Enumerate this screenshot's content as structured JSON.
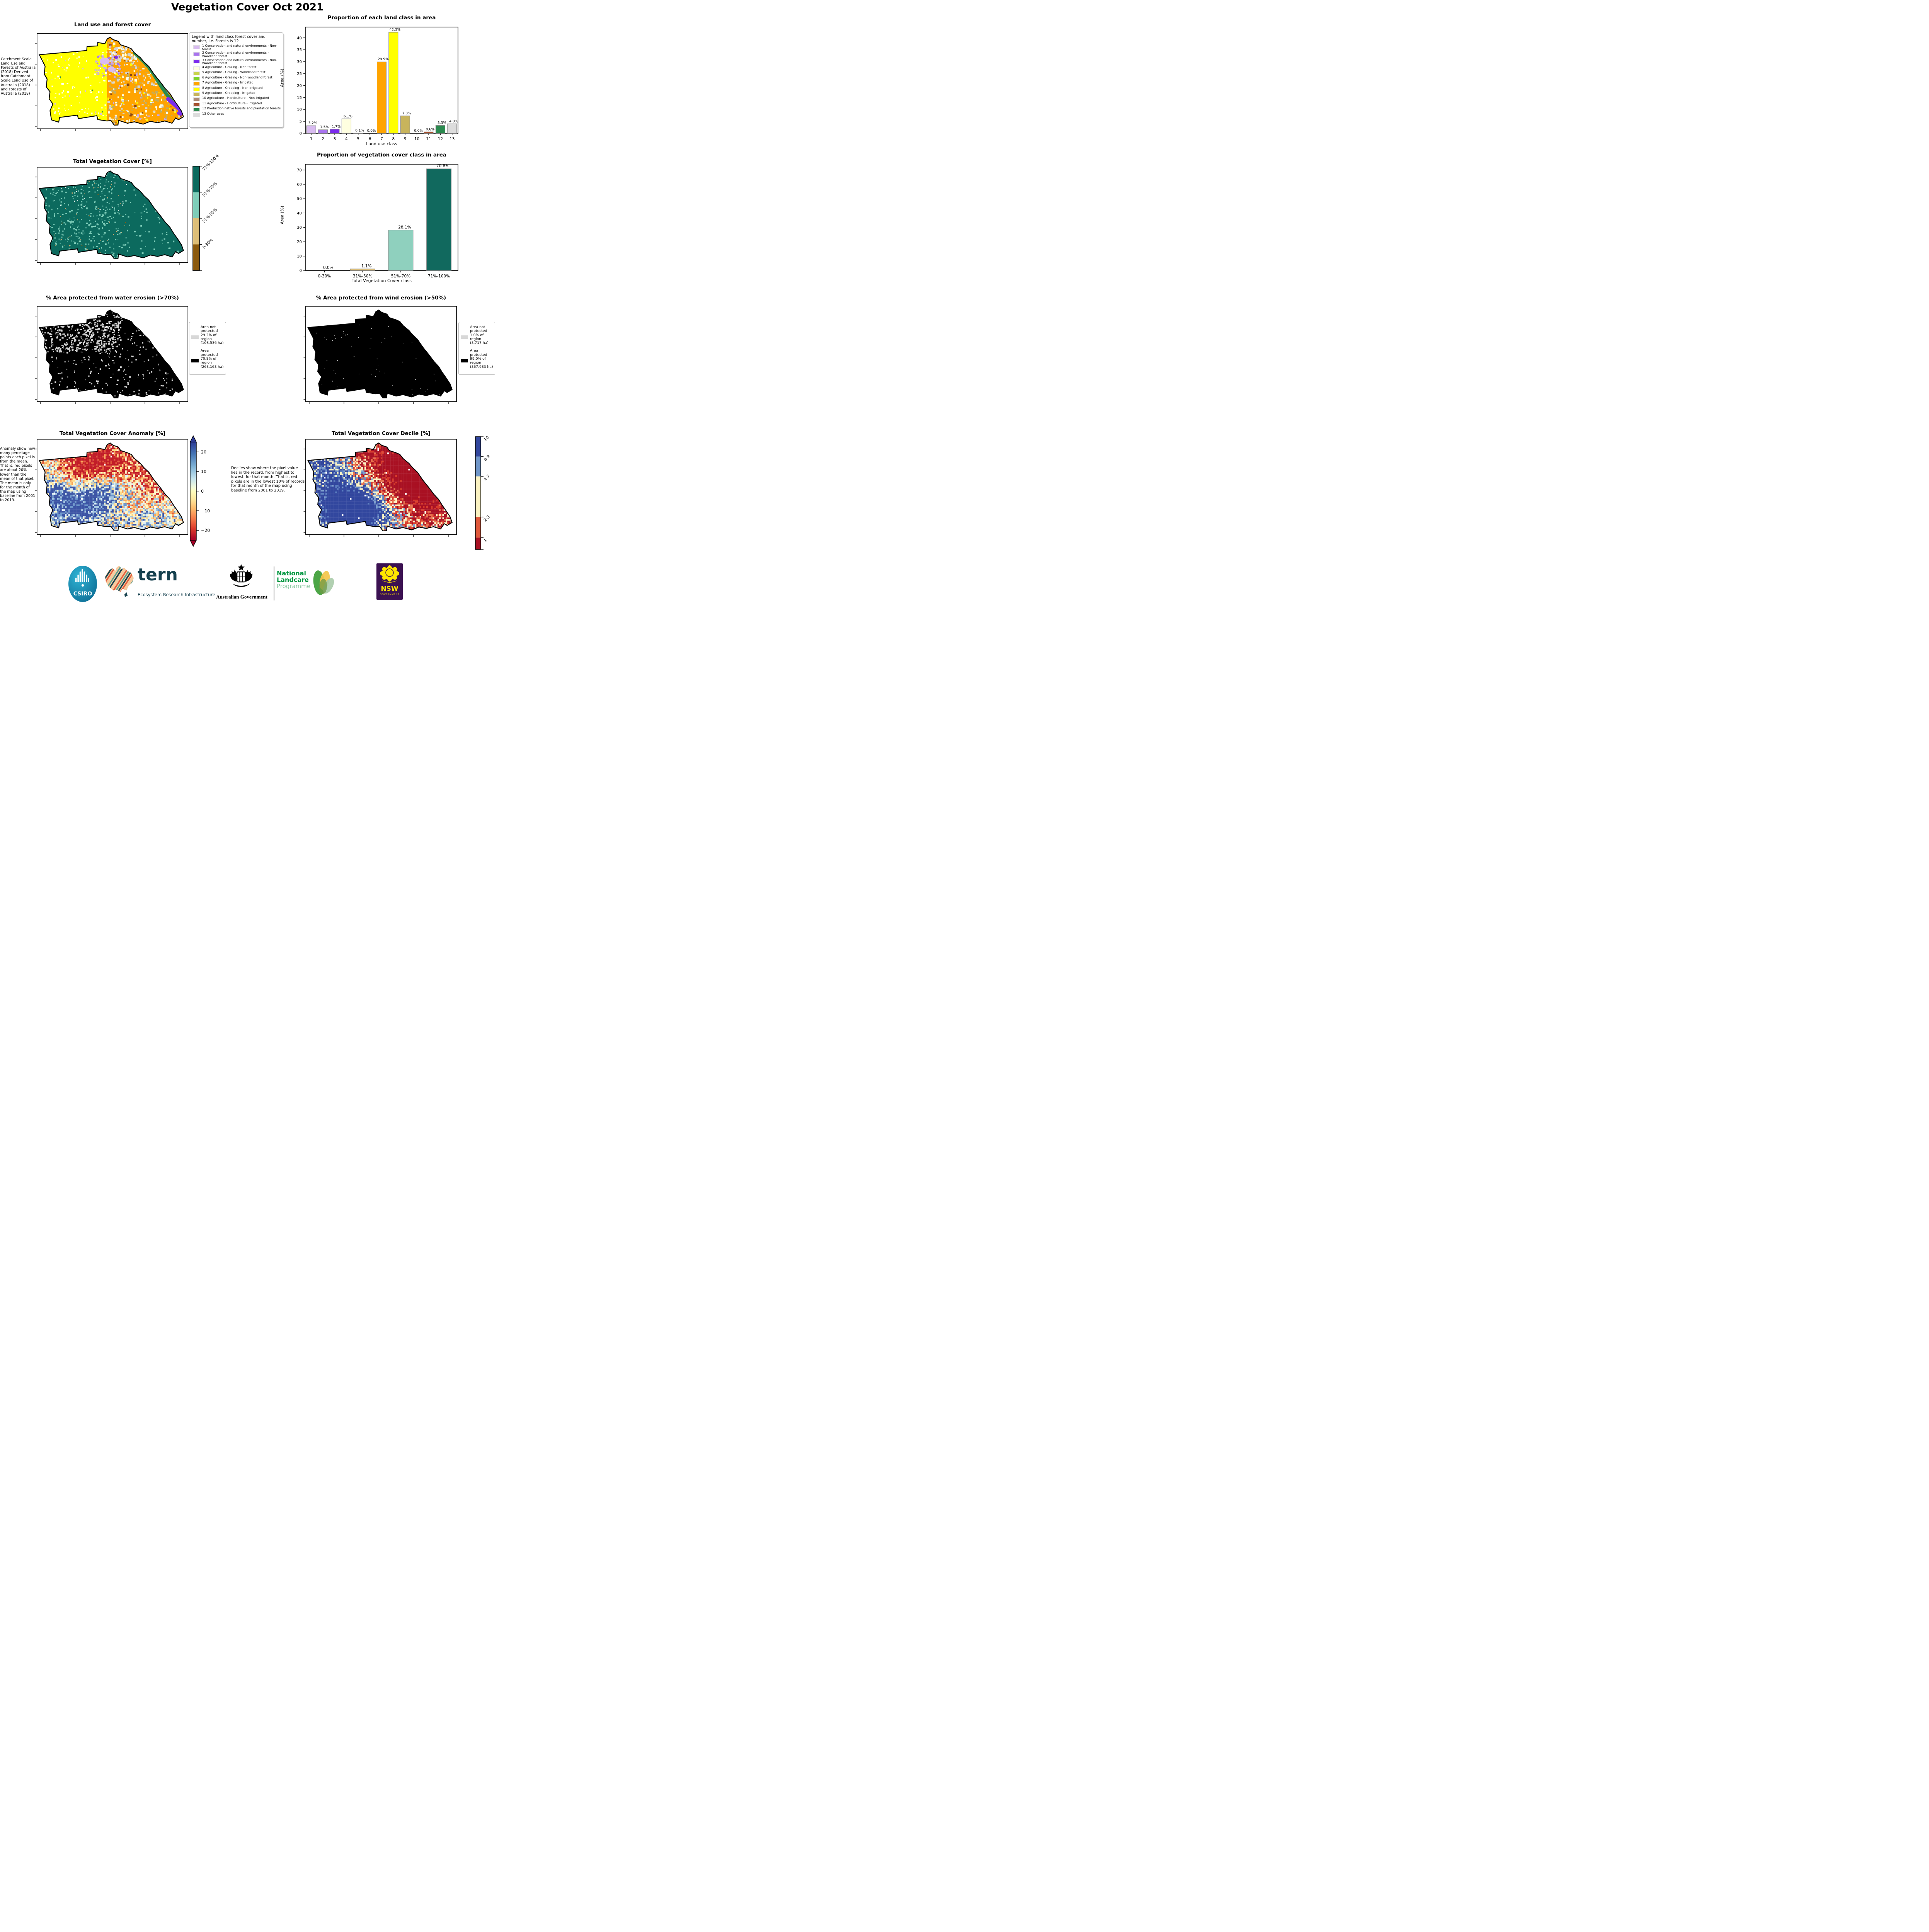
{
  "page_title": "Vegetation Cover Oct 2021",
  "maps": {
    "land_use": {
      "title": "Land use and forest cover",
      "note": "Catchment Scale Land Use and Forests of Australia (2018) Derived from Catchment Scale Land Use of Australia (2018) and Forests of Australia (2018)"
    },
    "veg_cover": {
      "title": "Total Vegetation Cover [%]",
      "colorbar_labels": [
        "71%-100%",
        "51%-70%",
        "31%-50%",
        "0-30%"
      ],
      "colorbar_colors": [
        "#0C6A5E",
        "#7ECDB9",
        "#DDBE78",
        "#8B5A0E"
      ]
    },
    "water": {
      "title": "% Area protected from water erosion (>70%)",
      "legend": [
        {
          "label": "Area not protected 29.2% of region (108,536 ha)",
          "color": "#D8D8D8"
        },
        {
          "label": "Area protected 70.8% of region (263,163 ha)",
          "color": "#000000"
        }
      ]
    },
    "wind": {
      "title": "% Area protected from wind erosion (>50%)",
      "legend": [
        {
          "label": "Area not protected 1.0% of region (3,717 ha)",
          "color": "#D8D8D8"
        },
        {
          "label": "Area protected 99.0% of region (367,983 ha)",
          "color": "#000000"
        }
      ]
    },
    "anomaly": {
      "title": "Total Vegetation Cover Anomaly [%]",
      "note": "Anomaly show how many percetage points each pixel is from the mean. That is, red pixels are about 20% lower than the mean of that pixel. The mean is only for the month of the map using baseline from 2001 to 2019.",
      "colorbar_ticks": [
        "20",
        "10",
        "0",
        "−10",
        "−20"
      ]
    },
    "decile": {
      "title": "Total Vegetation Cover Decile [%]",
      "note": "Deciles show where the pixel value lies in the record, from highest to lowest, for that month. That is, red pixels are in the lowest 10% of records for that month of the map using baseline from 2001 to 2019.",
      "colorbar_labels": [
        "10",
        "8-9",
        "4-7",
        "2-3",
        "1"
      ],
      "colorbar_colors": [
        "#32479E",
        "#7096C9",
        "#FBF3C2",
        "#E1593B",
        "#A91123"
      ]
    }
  },
  "land_legend": {
    "title": "Legend with land class forest cover and number, i.e. Forests is 12",
    "items": [
      {
        "label": "1 Conservation and natural environments - Non-forest",
        "color": "#D8BBF0"
      },
      {
        "label": "2 Conservation and natural environments - Woodland forest",
        "color": "#A873EE"
      },
      {
        "label": "3 Conservation and natural environments - Non-Woodland forest",
        "color": "#7C2BEE"
      },
      {
        "label": "4 Agriculture - Grazing - Non-forest",
        "color": "#FFFFE0"
      },
      {
        "label": "5 Agriculture - Grazing - Woodland forest",
        "color": "#C9D44B"
      },
      {
        "label": "6 Agriculture - Grazing - Non-woodland forest",
        "color": "#7ED32C"
      },
      {
        "label": "7 Agriculture - Grazing - Irrigated",
        "color": "#FFA400"
      },
      {
        "label": "8 Agriculture - Cropping - Non-irrigated",
        "color": "#FFFF00"
      },
      {
        "label": "9 Agriculture - Cropping - Irrigated",
        "color": "#C8B45C"
      },
      {
        "label": "10 Agriculture - Horticulture - Non-irrigated",
        "color": "#AD8A78"
      },
      {
        "label": "11 Agriculture - Horticulture - Irrigated",
        "color": "#A55231"
      },
      {
        "label": "12 Production native forests and plantation forests",
        "color": "#2B8A4F"
      },
      {
        "label": "13 Other uses",
        "color": "#DCDCDC"
      }
    ]
  },
  "chart_data": [
    {
      "type": "bar",
      "title": "Proportion of each land class in area",
      "xlabel": "Land use class",
      "ylabel": "Area (%)",
      "categories": [
        "1",
        "2",
        "3",
        "4",
        "5",
        "6",
        "7",
        "8",
        "9",
        "10",
        "11",
        "12",
        "13"
      ],
      "values": [
        3.2,
        1.5,
        1.7,
        6.1,
        0.1,
        0.0,
        29.9,
        42.3,
        7.3,
        0.0,
        0.6,
        3.3,
        4.0
      ],
      "value_labels": [
        "3.2%",
        "1.5%",
        "1.7%",
        "6.1%",
        "0.1%",
        "0.0%",
        "29.9%",
        "42.3%",
        "7.3%",
        "0.0%",
        "0.6%",
        "3.3%",
        "4.0%"
      ],
      "ylim": [
        0,
        44.5
      ],
      "yticks": [
        0,
        5,
        10,
        15,
        20,
        25,
        30,
        35,
        40
      ],
      "bar_colors": [
        "#D8BBF0",
        "#A873EE",
        "#7C2BEE",
        "#FFFFE0",
        "#C9D44B",
        "#7ED32C",
        "#FFA400",
        "#FFFF00",
        "#C8B45C",
        "#AD8A78",
        "#A55231",
        "#2B8A4F",
        "#DCDCDC"
      ],
      "grid": false,
      "legend_position": "none"
    },
    {
      "type": "bar",
      "title": "Proportion of vegetation cover class in area",
      "xlabel": "Total Vegetation Cover class",
      "ylabel": "Area (%)",
      "categories": [
        "0-30%",
        "31%-50%",
        "51%-70%",
        "71%-100%"
      ],
      "values": [
        0.0,
        1.1,
        28.1,
        70.8
      ],
      "value_labels": [
        "0.0%",
        "1.1%",
        "28.1%",
        "70.8%"
      ],
      "ylim": [
        0,
        74
      ],
      "yticks": [
        0,
        10,
        20,
        30,
        40,
        50,
        60,
        70
      ],
      "bar_colors": [
        "#8B5A0E",
        "#DDBE78",
        "#8FD0BE",
        "#11695E"
      ],
      "grid": false,
      "legend_position": "none"
    }
  ],
  "logos": {
    "csiro": "CSIRO",
    "tern_wordmark": "tern",
    "tern_subtitle": "Ecosystem Research Infrastructure",
    "aus_gov": "Australian Government",
    "landcare_line1": "National",
    "landcare_line2": "Landcare",
    "landcare_line3": "Programme",
    "nsw": "NSW",
    "nsw_sub": "GOVERNMENT"
  }
}
